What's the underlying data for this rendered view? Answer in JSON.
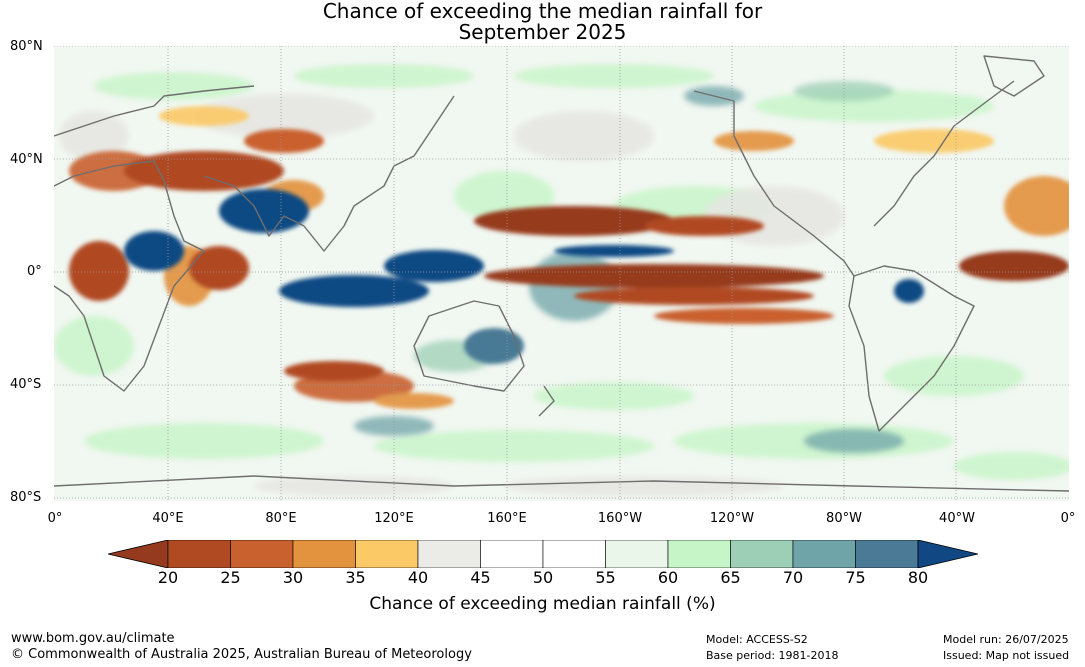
{
  "title_line1": "Chance of exceeding the median rainfall for",
  "title_line2": "September 2025",
  "lat_labels": [
    "80°N",
    "40°N",
    "0°",
    "40°S",
    "80°S"
  ],
  "lon_labels": [
    "0°",
    "40°E",
    "80°E",
    "120°E",
    "160°E",
    "160°W",
    "120°W",
    "80°W",
    "40°W",
    "0°"
  ],
  "colorbar": {
    "ticks": [
      "20",
      "25",
      "30",
      "35",
      "40",
      "45",
      "50",
      "55",
      "60",
      "65",
      "70",
      "75",
      "80"
    ],
    "colors": [
      "#963a1f",
      "#b04a23",
      "#c9612f",
      "#e3923e",
      "#fbc966",
      "#ebebe7",
      "#ffffff",
      "#ffffff",
      "#eaf6ea",
      "#c6f5c7",
      "#9ccfb5",
      "#6fa4a8",
      "#4a7a95",
      "#114883"
    ],
    "title": "Chance of exceeding median rainfall (%)"
  },
  "footer": {
    "url": "www.bom.gov.au/climate",
    "copyright": "© Commonwealth of Australia 2025, Australian Bureau of Meteorology",
    "model": "Model: ACCESS-S2",
    "base_period": "Base period: 1981-2018",
    "model_run": "Model run: 26/07/2025",
    "issued": "Issued: Map not issued"
  }
}
